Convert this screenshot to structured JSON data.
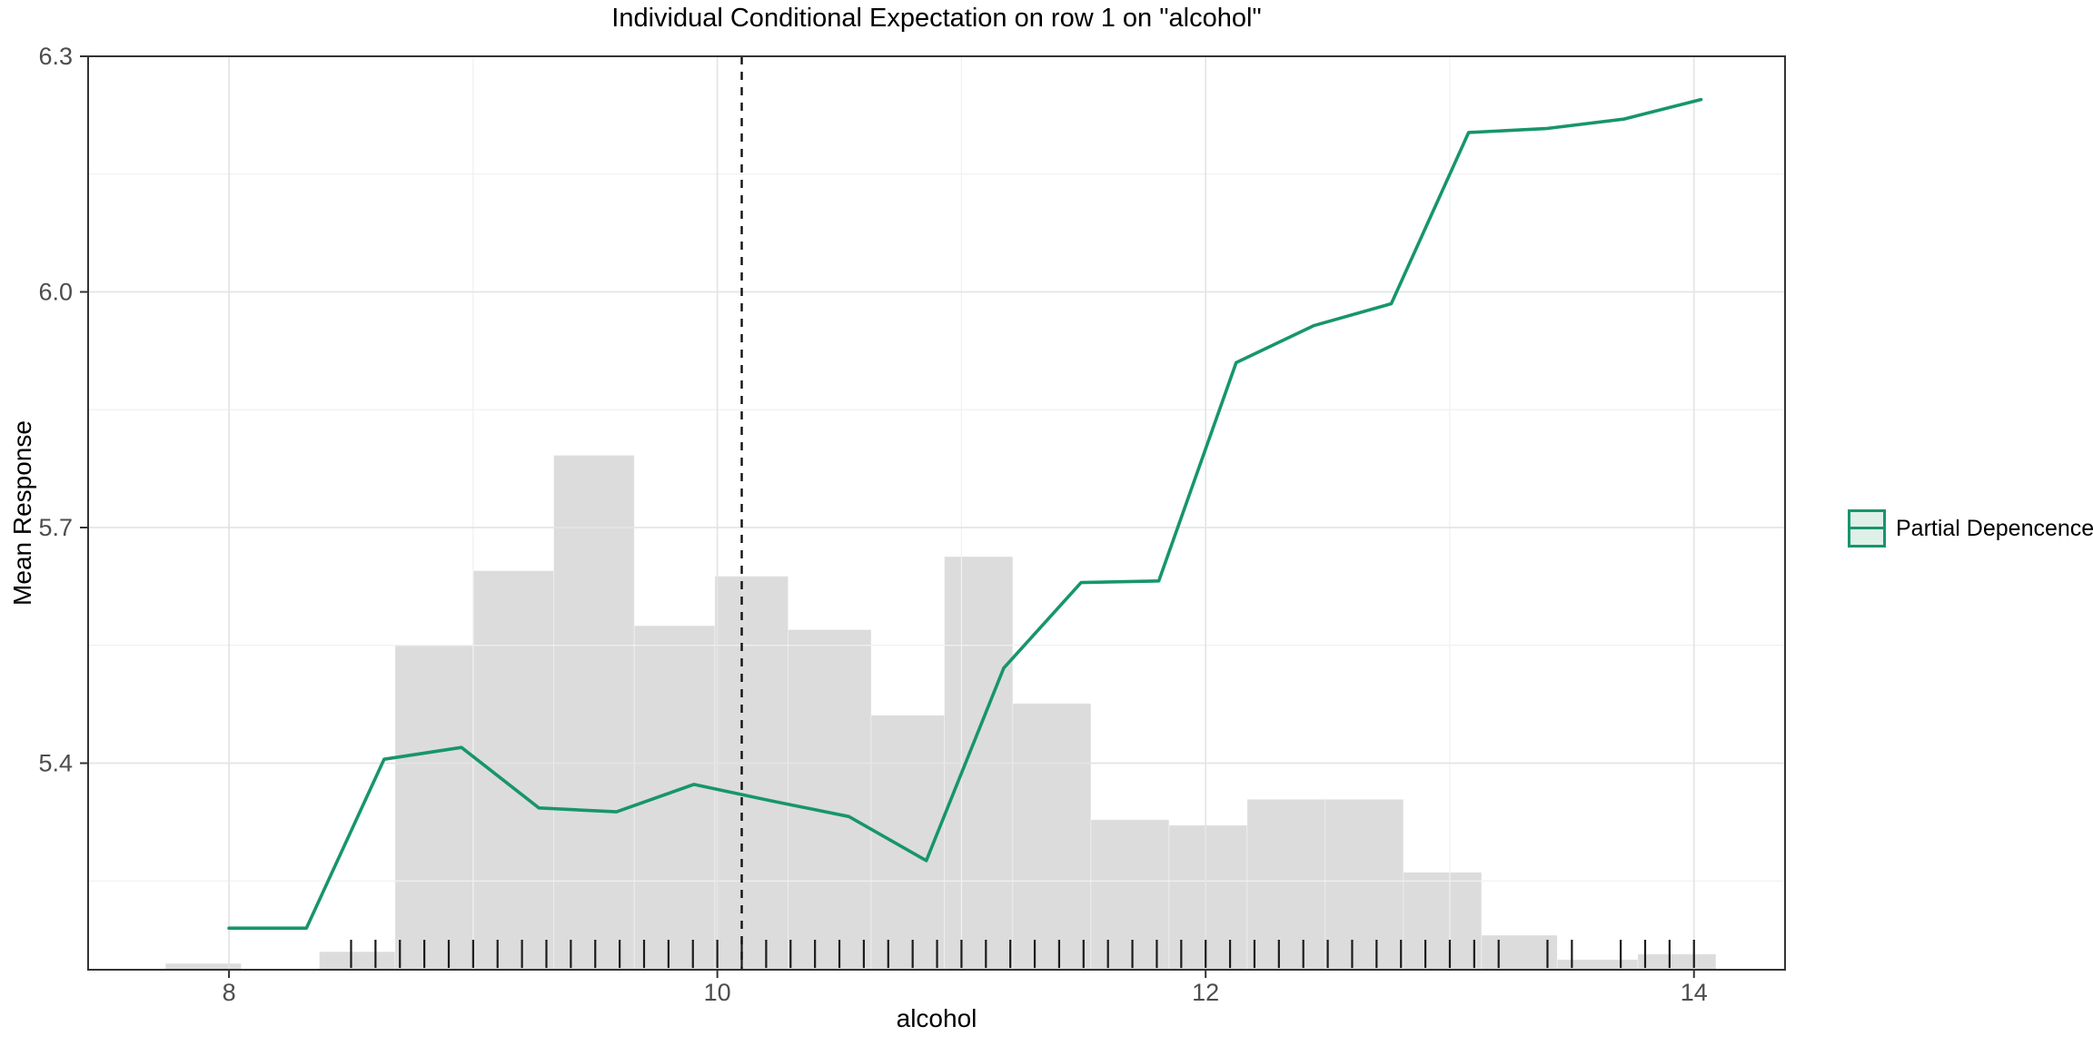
{
  "chart_data": {
    "type": "line",
    "title": "Individual Conditional Expectation on row 1 on \"alcohol\"",
    "xlabel": "alcohol",
    "ylabel": "Mean Response",
    "xlim": [
      7.423,
      14.373
    ],
    "ylim": [
      5.137,
      6.3
    ],
    "grid": true,
    "x_ticks": {
      "values": [
        8,
        10,
        12,
        14
      ],
      "labels": [
        "8",
        "10",
        "12",
        "14"
      ],
      "minor": [
        9,
        11,
        13
      ]
    },
    "y_ticks": {
      "values": [
        6.3,
        6.0,
        5.7,
        5.4
      ],
      "labels": [
        "6.3",
        "6.0",
        "5.7",
        "5.4"
      ],
      "minor": [
        6.15,
        5.85,
        5.55,
        5.25
      ]
    },
    "series": [
      {
        "name": "Partial Depencence",
        "type": "line",
        "color": "#17956d",
        "x": [
          8.0,
          8.317,
          8.635,
          8.952,
          9.269,
          9.587,
          9.904,
          10.221,
          10.539,
          10.856,
          11.173,
          11.49,
          11.808,
          12.125,
          12.442,
          12.76,
          13.077,
          13.394,
          13.712,
          14.029
        ],
        "y": [
          5.19,
          5.19,
          5.405,
          5.42,
          5.343,
          5.338,
          5.373,
          5.352,
          5.332,
          5.276,
          5.521,
          5.63,
          5.632,
          5.91,
          5.957,
          5.985,
          6.203,
          6.208,
          6.22,
          6.245
        ]
      }
    ],
    "vline": {
      "x": 10.1,
      "style": "dashed",
      "color": "#111111"
    },
    "histogram": {
      "fill": "#dcdcdc",
      "bins": [
        [
          7.74,
          8.05,
          5.145
        ],
        [
          8.37,
          8.68,
          5.16
        ],
        [
          8.68,
          9.0,
          5.55
        ],
        [
          9.0,
          9.33,
          5.645
        ],
        [
          9.33,
          9.66,
          5.792
        ],
        [
          9.66,
          9.99,
          5.575
        ],
        [
          9.99,
          10.29,
          5.638
        ],
        [
          10.29,
          10.63,
          5.57
        ],
        [
          10.63,
          10.93,
          5.461
        ],
        [
          10.93,
          11.21,
          5.663
        ],
        [
          11.21,
          11.53,
          5.476
        ],
        [
          11.53,
          11.85,
          5.328
        ],
        [
          11.85,
          12.17,
          5.321
        ],
        [
          12.17,
          12.49,
          5.354
        ],
        [
          12.49,
          12.81,
          5.354
        ],
        [
          12.81,
          13.13,
          5.261
        ],
        [
          13.13,
          13.44,
          5.181
        ],
        [
          13.44,
          13.77,
          5.15
        ],
        [
          13.77,
          14.09,
          5.157
        ]
      ]
    },
    "rug_x": [
      8.5,
      8.6,
      8.7,
      8.8,
      8.9,
      9.0,
      9.1,
      9.2,
      9.3,
      9.4,
      9.5,
      9.6,
      9.7,
      9.8,
      9.9,
      10.0,
      10.1,
      10.2,
      10.3,
      10.4,
      10.5,
      10.6,
      10.7,
      10.8,
      10.9,
      11.0,
      11.1,
      11.2,
      11.3,
      11.4,
      11.5,
      11.6,
      11.7,
      11.8,
      11.9,
      12.0,
      12.1,
      12.2,
      12.3,
      12.4,
      12.5,
      12.6,
      12.7,
      12.8,
      12.9,
      13.0,
      13.1,
      13.2,
      13.4,
      13.5,
      13.7,
      13.8,
      13.9,
      14.0
    ],
    "legend": {
      "position": "right",
      "entries": [
        "Partial Depencence"
      ]
    },
    "colors": {
      "line": "#17956d",
      "legend_fill": "#dff0e9",
      "histogram": "#dcdcdc",
      "major_grid": "#e4e4e4",
      "minor_grid": "#f1f1f1",
      "panel_border": "#333333",
      "tick_label": "#4d4d4d"
    }
  }
}
